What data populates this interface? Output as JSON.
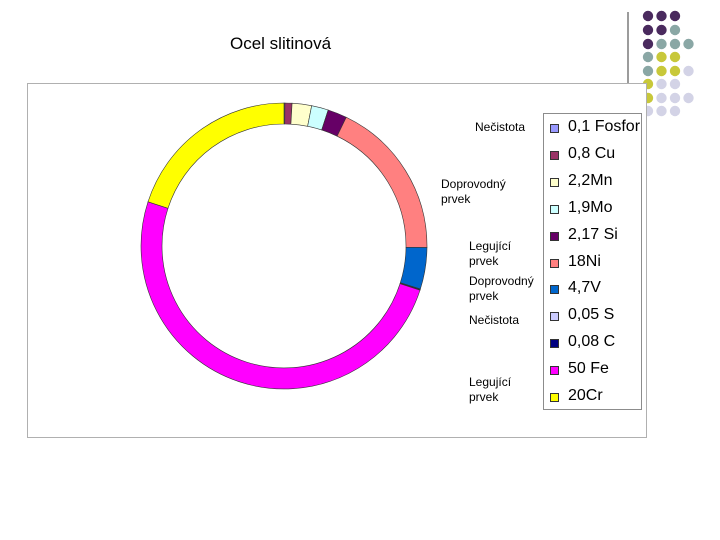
{
  "title": "Ocel slitinová",
  "chart_data": {
    "type": "pie",
    "style": "doughnut",
    "legend": "right",
    "categories": [
      "0,1 Fosfor",
      "0,8 Cu",
      "2,2Mn",
      "1,9Mo",
      "2,17 Si",
      "18Ni",
      "4,7V",
      "0,05 S",
      "0,08 C",
      "50 Fe",
      "20Cr"
    ],
    "values": [
      0.1,
      0.8,
      2.2,
      1.9,
      2.17,
      18,
      4.7,
      0.05,
      0.08,
      50,
      20
    ],
    "colors": [
      "#9999ff",
      "#993366",
      "#ffffcc",
      "#ccffff",
      "#660066",
      "#ff8080",
      "#0066cc",
      "#ccccff",
      "#000080",
      "#ff00ff",
      "#ffff00"
    ],
    "annotations": [
      {
        "text": "Nečistota",
        "lines": [
          "Nečistota"
        ]
      },
      {
        "text": "Doprovodný prvek",
        "lines": [
          "Doprovodný",
          "prvek"
        ]
      },
      {
        "text": "Legující prvek",
        "lines": [
          "Legující",
          "prvek"
        ]
      },
      {
        "text": "Doprovodný prvek",
        "lines": [
          "Doprovodný",
          "prvek"
        ]
      },
      {
        "text": "Nečistota",
        "lines": [
          "Nečistota"
        ]
      },
      {
        "text": "Legující prvek",
        "lines": [
          "Legující",
          "prvek"
        ]
      }
    ]
  },
  "decor": {
    "dot_colors": [
      "#4a2a5e",
      "#8aa7a5",
      "#c8c83a",
      "#d3d3e6"
    ],
    "rule_color": "#7a7a7a"
  }
}
